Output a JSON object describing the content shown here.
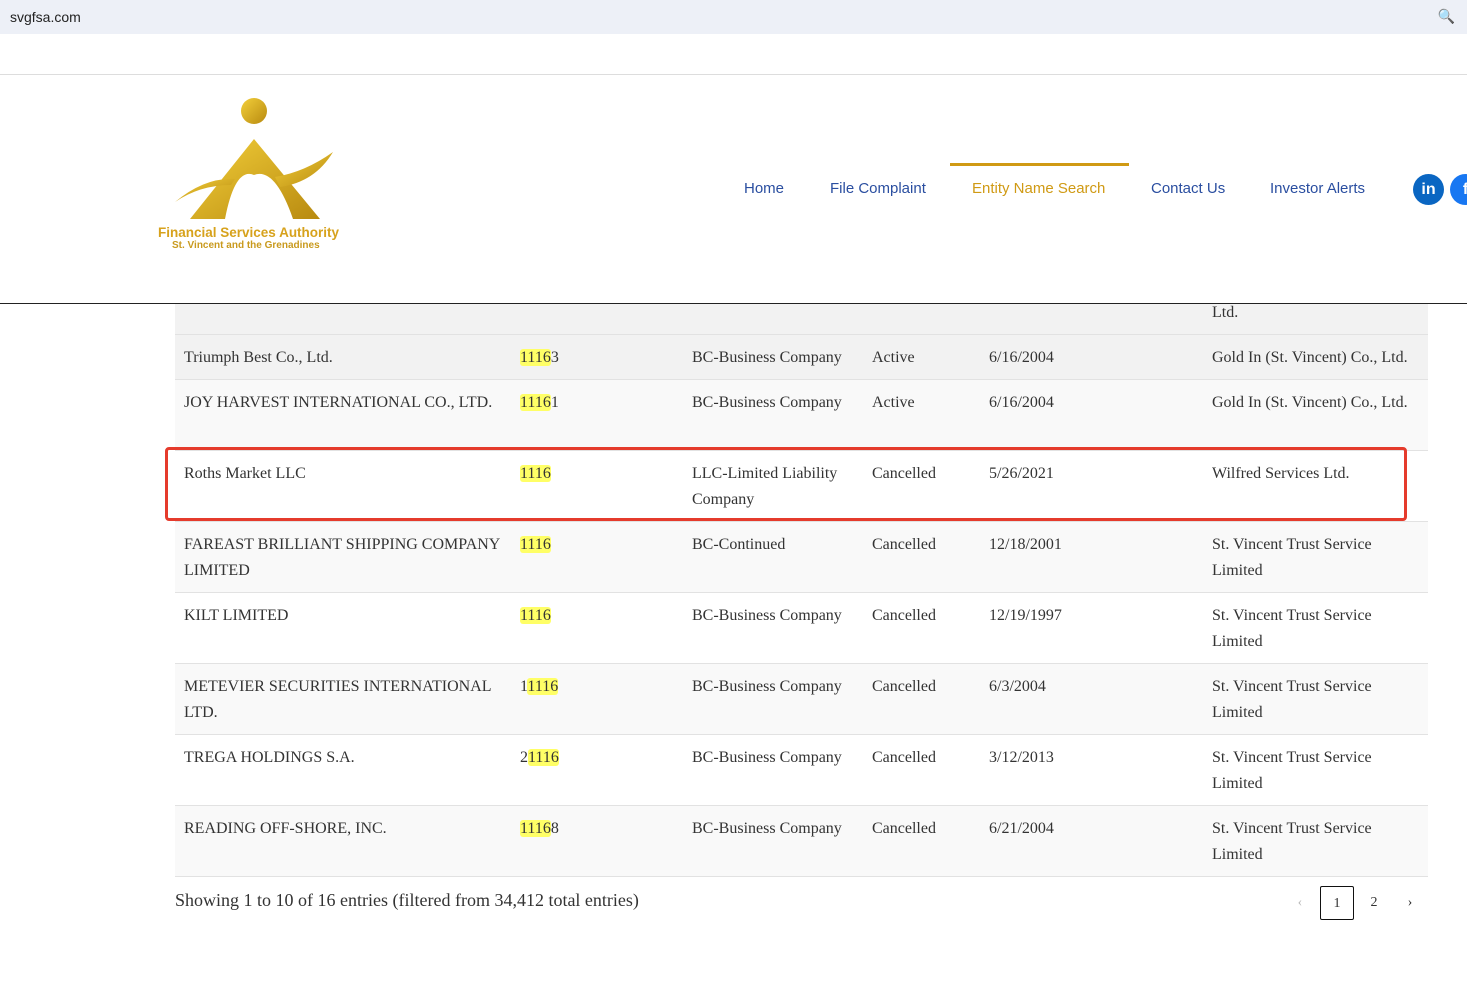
{
  "browser": {
    "url": "svgfsa.com",
    "zoom_icon": "magnifier-plus-icon"
  },
  "logo": {
    "line1": "Financial Services Authority",
    "line2": "St. Vincent and the Grenadines"
  },
  "nav": [
    {
      "label": "Home"
    },
    {
      "label": "File Complaint"
    },
    {
      "label": "Entity Name Search",
      "active": true
    },
    {
      "label": "Contact Us"
    },
    {
      "label": "Investor Alerts"
    }
  ],
  "social": {
    "linkedin": "in",
    "facebook": "f"
  },
  "accent": "#d09a14",
  "partial_row": {
    "agent": "Ltd."
  },
  "rows": [
    {
      "name": "Triumph Best Co., Ltd.",
      "num_pre": "",
      "num_hl": "1116",
      "num_post": "3",
      "type": "BC-Business Company",
      "status": "Active",
      "date": "6/16/2004",
      "agent": "Gold In (St. Vincent) Co., Ltd."
    },
    {
      "name": "JOY HARVEST INTERNATIONAL CO., LTD.",
      "num_pre": "",
      "num_hl": "1116",
      "num_post": "1",
      "type": "BC-Business Company",
      "status": "Active",
      "date": "6/16/2004",
      "agent": "Gold In (St. Vincent) Co., Ltd."
    },
    {
      "name": "Roths Market LLC",
      "num_pre": "",
      "num_hl": "1116",
      "num_post": "",
      "type": "LLC-Limited Liability Company",
      "status": "Cancelled",
      "date": "5/26/2021",
      "agent": "Wilfred Services Ltd.",
      "highlighted": true
    },
    {
      "name": "FAREAST BRILLIANT SHIPPING COMPANY LIMITED",
      "num_pre": "",
      "num_hl": "1116",
      "num_post": "",
      "type": "BC-Continued",
      "status": "Cancelled",
      "date": "12/18/2001",
      "agent": "St. Vincent Trust Service Limited"
    },
    {
      "name": "KILT LIMITED",
      "num_pre": "",
      "num_hl": "1116",
      "num_post": "",
      "type": "BC-Business Company",
      "status": "Cancelled",
      "date": "12/19/1997",
      "agent": "St. Vincent Trust Service Limited"
    },
    {
      "name": "METEVIER SECURITIES INTERNATIONAL LTD.",
      "num_pre": "1",
      "num_hl": "1116",
      "num_post": "",
      "type": "BC-Business Company",
      "status": "Cancelled",
      "date": "6/3/2004",
      "agent": "St. Vincent Trust Service Limited"
    },
    {
      "name": "TREGA HOLDINGS S.A.",
      "num_pre": "2",
      "num_hl": "1116",
      "num_post": "",
      "type": "BC-Business Company",
      "status": "Cancelled",
      "date": "3/12/2013",
      "agent": "St. Vincent Trust Service Limited"
    },
    {
      "name": "READING OFF-SHORE, INC.",
      "num_pre": "",
      "num_hl": "1116",
      "num_post": "8",
      "type": "BC-Business Company",
      "status": "Cancelled",
      "date": "6/21/2004",
      "agent": "St. Vincent Trust Service Limited"
    }
  ],
  "info": "Showing 1 to 10 of 16 entries (filtered from 34,412 total entries)",
  "pagination": {
    "prev": "‹",
    "pages": [
      "1",
      "2"
    ],
    "current": "1",
    "next": "›"
  }
}
